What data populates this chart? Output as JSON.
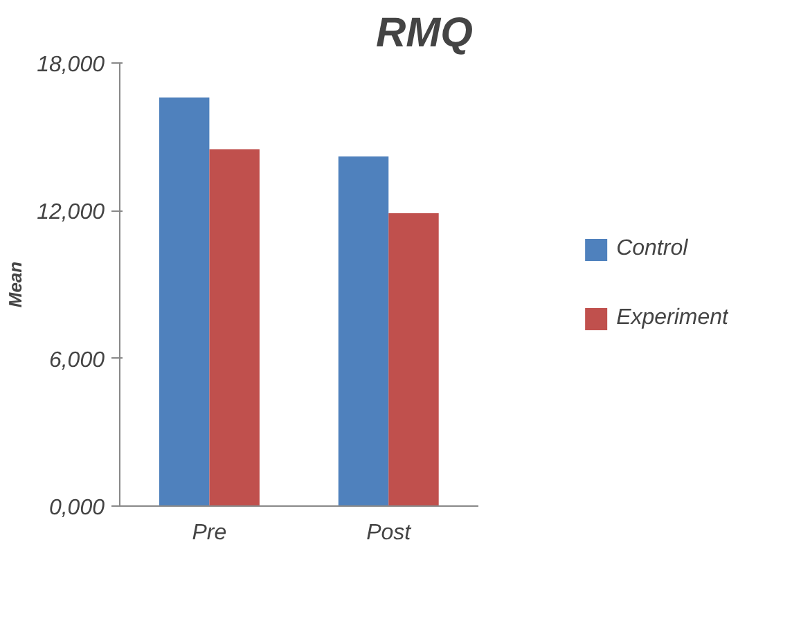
{
  "chart_data": {
    "type": "bar",
    "title": "RMQ",
    "ylabel": "Mean",
    "categories": [
      "Pre",
      "Post"
    ],
    "series": [
      {
        "name": "Control",
        "color": "#4f81bd",
        "values": [
          16600,
          14200
        ]
      },
      {
        "name": "Experiment",
        "color": "#c0504d",
        "values": [
          14500,
          11900
        ]
      }
    ],
    "ylim": [
      0,
      18000
    ],
    "yticks": [
      {
        "value": 0,
        "label": "0,000"
      },
      {
        "value": 6000,
        "label": "6,000"
      },
      {
        "value": 12000,
        "label": "12,000"
      },
      {
        "value": 18000,
        "label": "18,000"
      }
    ],
    "legend": "right",
    "grid": false
  }
}
